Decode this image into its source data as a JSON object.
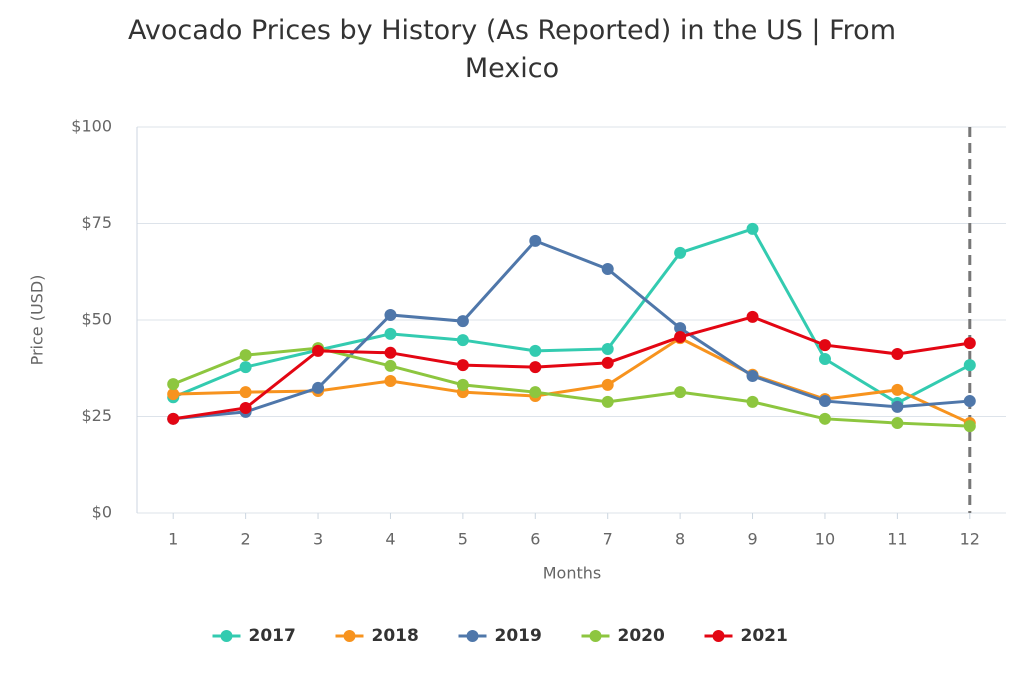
{
  "chart_data": {
    "type": "line",
    "title": "Avocado Prices by History (As Reported) in the US | From Mexico",
    "x_label": "Months",
    "y_label": "Price (USD)",
    "x": [
      1,
      2,
      3,
      4,
      5,
      6,
      7,
      8,
      9,
      10,
      11,
      12
    ],
    "xlim": [
      0.5,
      12.5
    ],
    "xticks": [
      1,
      2,
      3,
      4,
      5,
      6,
      7,
      8,
      9,
      10,
      11,
      12
    ],
    "ylim": [
      0,
      100
    ],
    "yticks": [
      {
        "value": 0,
        "label": "$0"
      },
      {
        "value": 25,
        "label": "$25"
      },
      {
        "value": 50,
        "label": "$50"
      },
      {
        "value": 75,
        "label": "$75"
      },
      {
        "value": 100,
        "label": "$100"
      }
    ],
    "grid": true,
    "reference_line_x": 12,
    "legend": "bottom",
    "series": [
      {
        "name": "2017",
        "color": "#33cbb0",
        "values": [
          30,
          37.8,
          42.2,
          46.4,
          44.8,
          42,
          42.5,
          67.4,
          73.6,
          39.9,
          28.5,
          38.3
        ]
      },
      {
        "name": "2018",
        "color": "#f7931e",
        "values": [
          30.8,
          31.3,
          31.6,
          34.2,
          31.3,
          30.3,
          33.2,
          45.3,
          35.8,
          29.5,
          31.9,
          23.3
        ]
      },
      {
        "name": "2019",
        "color": "#4f77aa",
        "values": [
          24.4,
          26.2,
          32.4,
          51.3,
          49.7,
          70.5,
          63.2,
          47.9,
          35.5,
          29,
          27.5,
          29
        ]
      },
      {
        "name": "2020",
        "color": "#8dc63f",
        "values": [
          33.4,
          40.9,
          42.7,
          38.1,
          33.2,
          31.3,
          28.8,
          31.3,
          28.8,
          24.4,
          23.3,
          22.5
        ]
      },
      {
        "name": "2021",
        "color": "#e30613",
        "values": [
          24.4,
          27.2,
          42,
          41.5,
          38.3,
          37.8,
          38.9,
          45.6,
          50.8,
          43.5,
          41.2,
          44
        ]
      }
    ]
  }
}
